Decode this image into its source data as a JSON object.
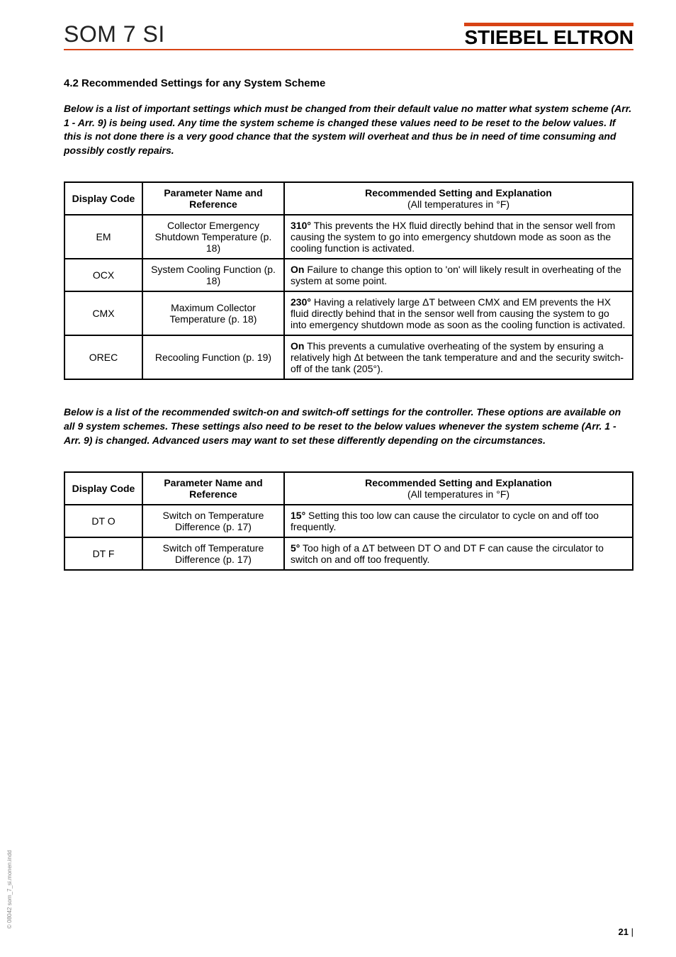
{
  "header": {
    "product": "SOM 7 SI",
    "brand": "STIEBEL ELTRON",
    "rule_color": "#d84315"
  },
  "section": {
    "heading": "4.2 Recommended Settings for any System Scheme",
    "intro1": "Below is a list of important settings which must be changed from their default value no matter what system scheme (Arr. 1 - Arr. 9) is being used. Any time the system scheme is changed these values need to be reset to the below values. If this is not done there is a very good chance that the system will overheat and thus be in need of time consuming and possibly costly repairs.",
    "intro2": "Below is a list of the recommended switch-on and switch-off settings for the controller. These options are available on all 9 system schemes. These settings also need to be reset to the below values whenever the system scheme (Arr. 1 - Arr. 9) is changed. Advanced users may want to set these differently depending on the circumstances."
  },
  "table_headers": {
    "col1": "Display Code",
    "col2": "Parameter Name and Reference",
    "col3_line1": "Recommended Setting and Explanation",
    "col3_line2": "(All temperatures in °F)"
  },
  "table1_rows": [
    {
      "code": "EM",
      "param": "Collector Emergency Shutdown Temperature (p. 18)",
      "value": "310°",
      "expl": " This prevents the HX fluid directly behind that in the sensor well from causing the system to go into emergency shutdown mode as soon as the cooling function is activated."
    },
    {
      "code": "OCX",
      "param": "System Cooling Function (p. 18)",
      "value": "On",
      "expl": " Failure to change this option to 'on' will likely result in overheating of the system at some point."
    },
    {
      "code": "CMX",
      "param": "Maximum Collector Temperature (p. 18)",
      "value": "230°",
      "expl": " Having a relatively large ΔT between CMX and EM prevents the HX fluid directly behind that in the sensor well from causing the system to go into emergency shutdown mode as soon as the cooling function is activated."
    },
    {
      "code": "OREC",
      "param": "Recooling Function (p. 19)",
      "value": "On",
      "expl": " This prevents a cumulative overheating of the system by ensuring a relatively high Δt between the tank temperature and and the security switch-off of the tank (205°)."
    }
  ],
  "table2_rows": [
    {
      "code": "DT O",
      "param": "Switch on Temperature Difference (p. 17)",
      "value": "15°",
      "expl": " Setting this too low can cause the circulator to cycle on and off too frequently."
    },
    {
      "code": "DT F",
      "param": "Switch off Temperature Difference (p. 17)",
      "value": "5°",
      "expl": " Too high of a ΔT between DT O and DT F can cause the circulator to switch on and off too frequently."
    }
  ],
  "footer": {
    "page_number": "21",
    "side_text": "© 08042 som_7_si.monen.indd"
  }
}
